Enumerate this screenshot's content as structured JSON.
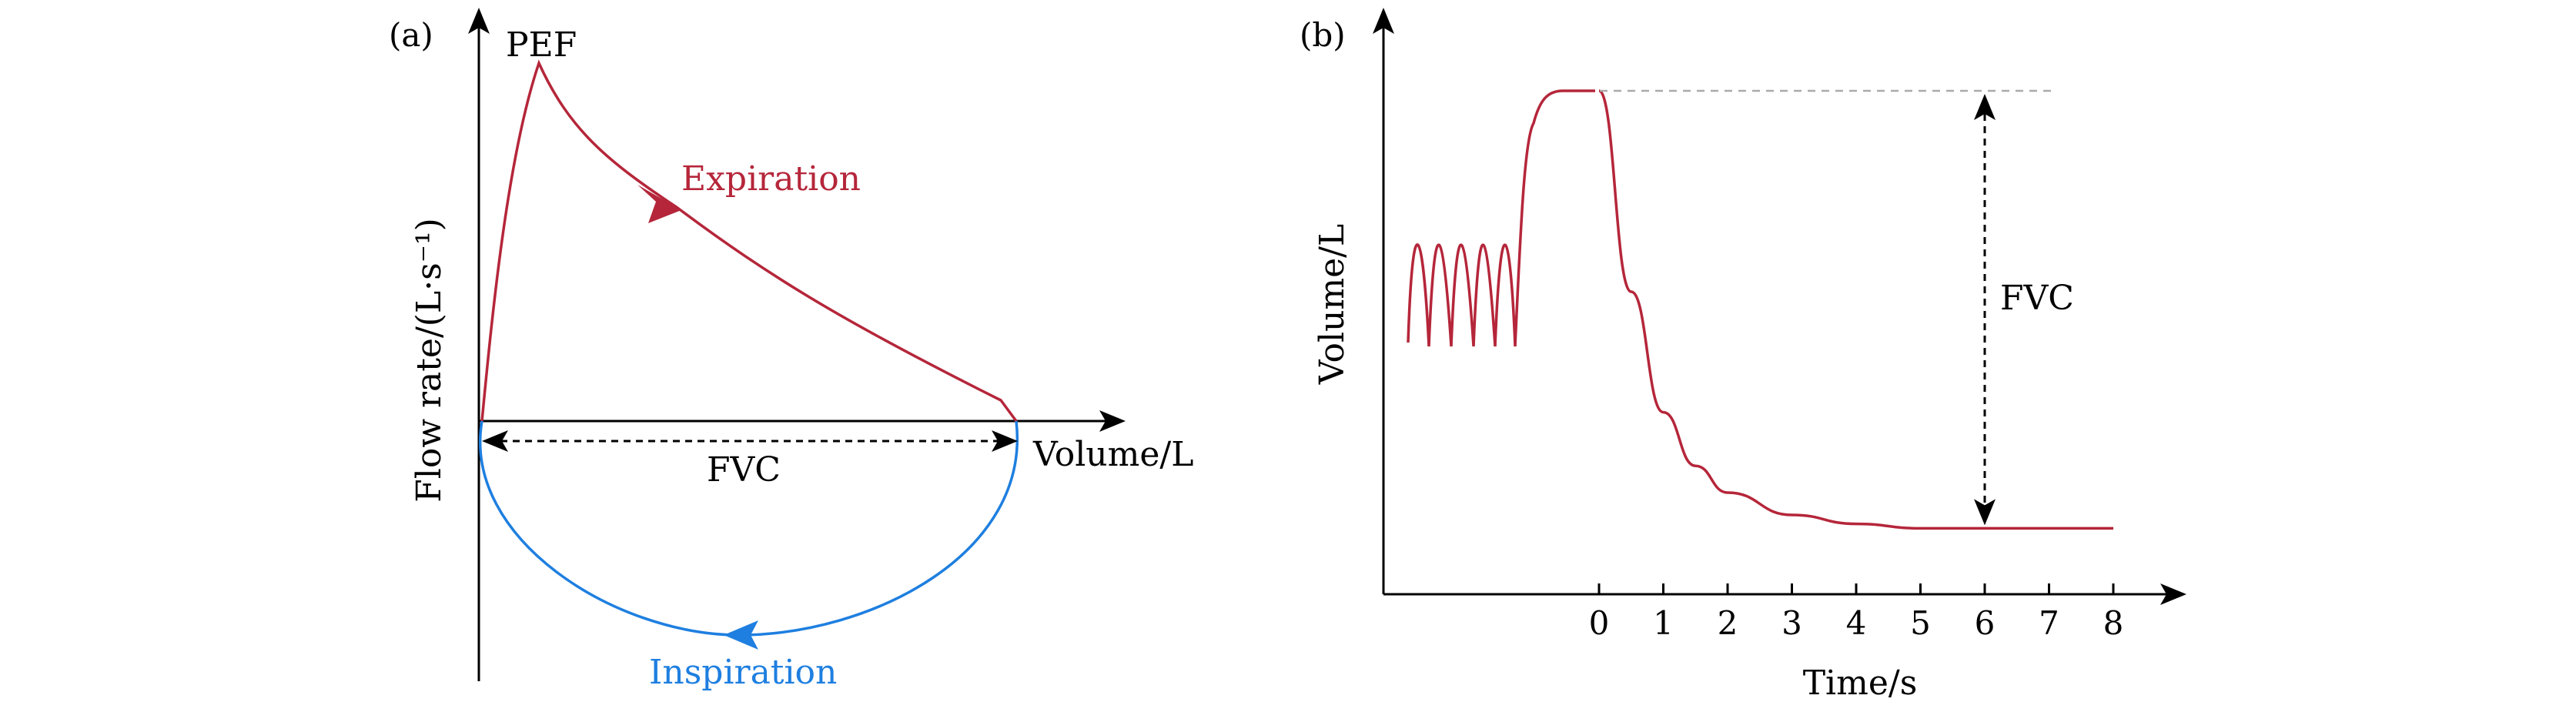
{
  "colors": {
    "expiration": "#b5263a",
    "inspiration": "#1e7fe0",
    "axis": "#000000",
    "dashed_ref": "#aaaaaa"
  },
  "chart_data": [
    {
      "panel_label": "(a)",
      "type": "line",
      "xlabel": "Volume/L",
      "ylabel": "Flow rate/(L·s⁻¹)",
      "annotations": {
        "peak": "PEF",
        "fvc": "FVC",
        "expiration": "Expiration",
        "inspiration": "Inspiration"
      },
      "series": [
        {
          "name": "Expiration",
          "x": [
            0,
            0.04,
            0.08,
            0.12,
            0.2,
            0.35,
            0.5,
            0.7,
            0.85,
            1.0
          ],
          "y": [
            0,
            0.7,
            1.0,
            0.9,
            0.7,
            0.55,
            0.38,
            0.22,
            0.12,
            0.0
          ]
        },
        {
          "name": "Inspiration",
          "x": [
            0,
            0.1,
            0.25,
            0.5,
            0.75,
            0.9,
            1.0
          ],
          "y": [
            0,
            -0.35,
            -0.55,
            -0.6,
            -0.55,
            -0.35,
            0
          ]
        }
      ]
    },
    {
      "panel_label": "(b)",
      "type": "line",
      "xlabel": "Time/s",
      "ylabel": "Volume/L",
      "x_ticks": [
        "0",
        "1",
        "2",
        "3",
        "4",
        "5",
        "6",
        "7",
        "8"
      ],
      "xlim": [
        0,
        8
      ],
      "annotations": {
        "fvc": "FVC",
        "fvc_time": 6
      },
      "series": [
        {
          "name": "Volume",
          "x": [
            0,
            0.5,
            1,
            1.5,
            2,
            3,
            4,
            5,
            6,
            7,
            8
          ],
          "y": [
            1.0,
            0.55,
            0.28,
            0.16,
            0.1,
            0.05,
            0.03,
            0.02,
            0.02,
            0.02,
            0.02
          ]
        }
      ]
    }
  ]
}
